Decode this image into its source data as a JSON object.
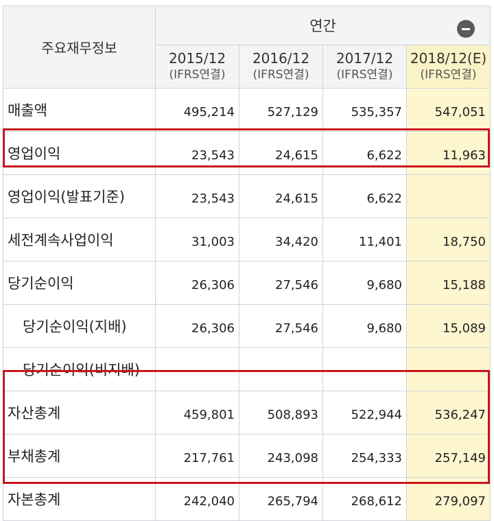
{
  "header": {
    "corner_label": "주요재무정보",
    "group_label": "연간",
    "columns": [
      {
        "period": "2015/12",
        "basis": "(IFRS연결)"
      },
      {
        "period": "2016/12",
        "basis": "(IFRS연결)"
      },
      {
        "period": "2017/12",
        "basis": "(IFRS연결)"
      },
      {
        "period": "2018/12(E)",
        "basis": "(IFRS연결)"
      }
    ]
  },
  "rows": [
    {
      "label": "매출액",
      "values": [
        "495,214",
        "527,129",
        "535,357",
        "547,051"
      ]
    },
    {
      "label": "영업이익",
      "values": [
        "23,543",
        "24,615",
        "6,622",
        "11,963"
      ]
    },
    {
      "label": "영업이익(발표기준)",
      "values": [
        "23,543",
        "24,615",
        "6,622",
        ""
      ]
    },
    {
      "label": "세전계속사업이익",
      "values": [
        "31,003",
        "34,420",
        "11,401",
        "18,750"
      ]
    },
    {
      "label": "당기순이익",
      "values": [
        "26,306",
        "27,546",
        "9,680",
        "15,188"
      ]
    },
    {
      "label": "당기순이익(지배)",
      "values": [
        "26,306",
        "27,546",
        "9,680",
        "15,089"
      ]
    },
    {
      "label": "당기순이익(비지배)",
      "values": [
        "",
        "",
        "",
        ""
      ]
    },
    {
      "label": "자산총계",
      "values": [
        "459,801",
        "508,893",
        "522,944",
        "536,247"
      ]
    },
    {
      "label": "부채총계",
      "values": [
        "217,761",
        "243,098",
        "254,333",
        "257,149"
      ]
    },
    {
      "label": "자본총계",
      "values": [
        "242,040",
        "265,794",
        "268,612",
        "279,097"
      ]
    }
  ],
  "colors": {
    "highlight": "#c8161d",
    "estimate_fill": "#fdf6cf"
  }
}
